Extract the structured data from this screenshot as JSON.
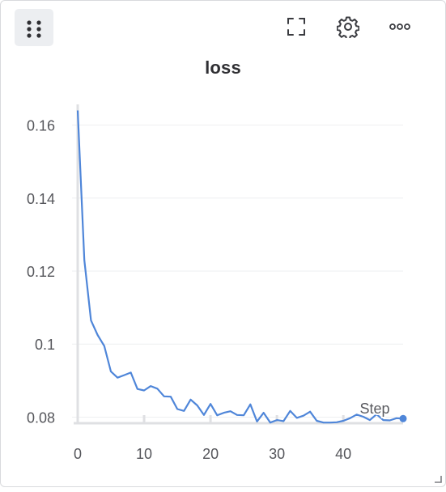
{
  "panel": {
    "title": "loss",
    "icons": {
      "drag": "drag-handle-icon",
      "fullscreen": "fullscreen-icon",
      "settings": "gear-icon",
      "more": "more-options-icon"
    }
  },
  "chart_data": {
    "type": "line",
    "title": "loss",
    "xlabel": "",
    "ylabel": "",
    "legend_text": "Step",
    "xlim": [
      0,
      49
    ],
    "ylim": [
      0.077,
      0.167
    ],
    "x_ticks": [
      0,
      10,
      20,
      30,
      40
    ],
    "y_ticks": [
      0.08,
      0.1,
      0.12,
      0.14,
      0.16
    ],
    "y_tick_labels": [
      "0.08",
      "0.1",
      "0.12",
      "0.14",
      "0.16"
    ],
    "grid": true,
    "line_color": "#4f86d9",
    "series": [
      {
        "x": [
          0,
          1,
          2,
          3,
          4,
          5,
          6,
          7,
          8,
          9,
          10,
          11,
          12,
          13,
          14,
          15,
          16,
          17,
          18,
          19,
          20,
          21,
          22,
          23,
          24,
          25,
          26,
          27,
          28,
          29,
          30,
          31,
          32,
          33,
          34,
          35,
          36,
          37,
          38,
          39,
          40,
          41,
          42,
          43,
          44,
          45,
          46,
          47,
          48,
          49
        ],
        "values": [
          0.164,
          0.123,
          0.1065,
          0.1025,
          0.0995,
          0.0925,
          0.0908,
          0.0915,
          0.0922,
          0.0877,
          0.0873,
          0.0885,
          0.0878,
          0.0857,
          0.0856,
          0.0822,
          0.0817,
          0.0848,
          0.0832,
          0.0806,
          0.0836,
          0.0805,
          0.0812,
          0.0816,
          0.0806,
          0.0805,
          0.0835,
          0.0788,
          0.0812,
          0.0785,
          0.0792,
          0.0789,
          0.0817,
          0.0798,
          0.0804,
          0.0815,
          0.079,
          0.0785,
          0.0785,
          0.0786,
          0.079,
          0.0797,
          0.0807,
          0.0801,
          0.0792,
          0.0808,
          0.0792,
          0.0791,
          0.0797,
          0.0796
        ]
      }
    ]
  }
}
